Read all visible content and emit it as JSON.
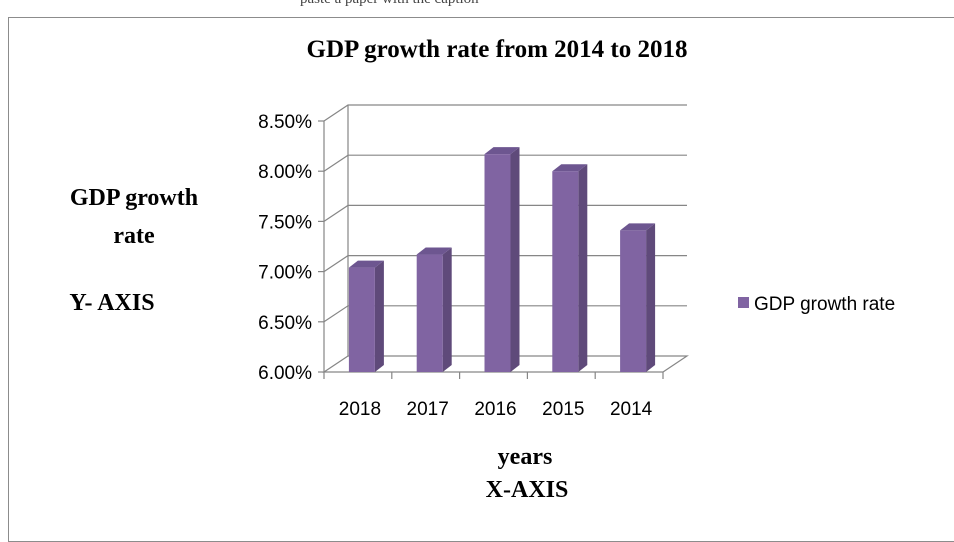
{
  "top_caption": "paste a paper with the caption",
  "chart_data": {
    "type": "bar",
    "title": "GDP growth rate from 2014 to 2018",
    "categories": [
      "2018",
      "2017",
      "2016",
      "2015",
      "2014"
    ],
    "series": [
      {
        "name": "GDP growth rate",
        "values": [
          7.04,
          7.17,
          8.17,
          8.0,
          7.41
        ],
        "color": "#8064a2"
      }
    ],
    "y_tick_labels": [
      "6.00%",
      "6.50%",
      "7.00%",
      "7.50%",
      "8.00%",
      "8.50%"
    ],
    "ylim": [
      6.0,
      8.5
    ],
    "grid": true,
    "legend_position": "right",
    "ylabel_lines": [
      "GDP growth",
      "rate",
      "Y- AXIS"
    ],
    "xlabel_lines": [
      "years",
      "X-AXIS"
    ]
  }
}
